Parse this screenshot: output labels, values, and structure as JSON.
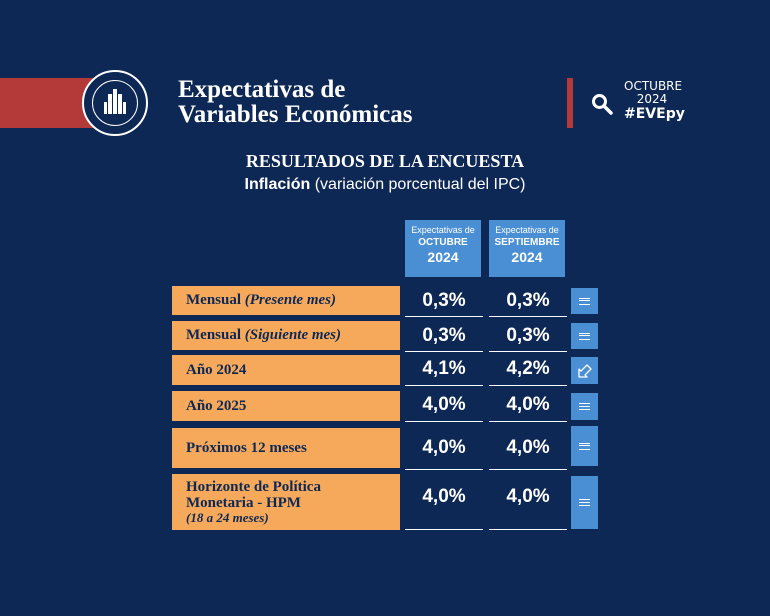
{
  "header": {
    "title_line1": "Expectativas de",
    "title_line2": "Variables Económicas",
    "month": "OCTUBRE",
    "year": "2024",
    "hashtag": "#EVEpy"
  },
  "survey": {
    "heading": "RESULTADOS DE LA ENCUESTA",
    "topic": "Inflación",
    "topic_detail": " (variación porcentual del IPC)"
  },
  "columns": [
    {
      "line1": "Expectativas de",
      "month": "OCTUBRE",
      "year": "2024"
    },
    {
      "line1": "Expectativas de",
      "month": "SEPTIEMBRE",
      "year": "2024"
    }
  ],
  "rows": [
    {
      "label": "Mensual ",
      "label_italic": "(Presente mes)",
      "oct": "0,3%",
      "sep": "0,3%",
      "indicator": "equal-icon"
    },
    {
      "label": "Mensual ",
      "label_italic": "(Siguiente mes)",
      "oct": "0,3%",
      "sep": "0,3%",
      "indicator": "equal-icon"
    },
    {
      "label": "Año 2024",
      "oct": "4,1%",
      "sep": "4,2%",
      "indicator": "down-left-arrow-icon"
    },
    {
      "label": "Año 2025",
      "oct": "4,0%",
      "sep": "4,0%",
      "indicator": "equal-icon"
    },
    {
      "label": "Próximos 12 meses",
      "oct": "4,0%",
      "sep": "4,0%",
      "indicator": "equal-icon"
    },
    {
      "label_line1": "Horizonte de Política",
      "label_line2": "Monetaria - HPM",
      "label_note": "(18 a 24 meses)",
      "oct": "4,0%",
      "sep": "4,0%",
      "indicator": "equal-icon"
    }
  ],
  "colors": {
    "background": "#0e2855",
    "accent_red": "#b43a3a",
    "label_orange": "#f6a95a",
    "column_blue": "#4a8ed4"
  }
}
